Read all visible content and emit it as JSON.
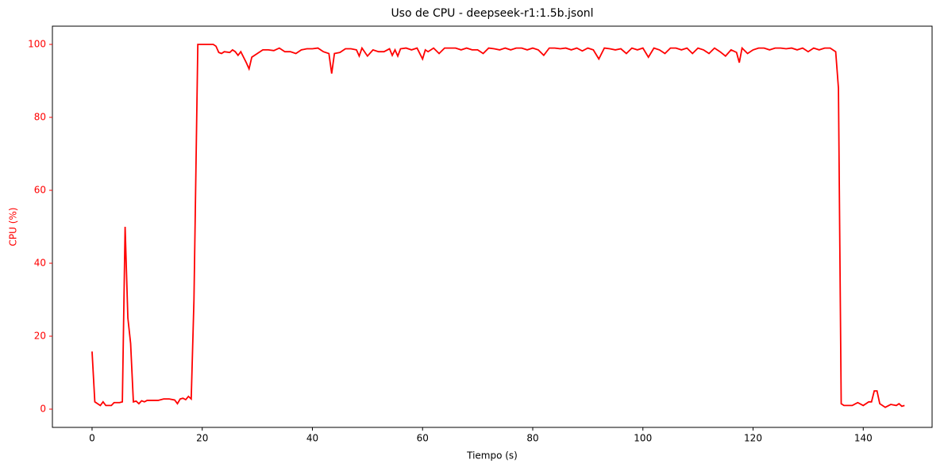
{
  "chart_data": {
    "type": "line",
    "title": "Uso de CPU - deepseek-r1:1.5b.jsonl",
    "x_label": "Tiempo (s)",
    "y_label": "CPU (%)",
    "series": [
      {
        "name": "CPU (%)",
        "color": "#ff0000",
        "x": [
          0,
          0.5,
          1.5,
          2,
          2.5,
          3.5,
          4,
          5,
          5.5,
          6,
          6.5,
          7,
          7.5,
          8,
          8.5,
          9,
          9.5,
          10,
          11,
          12,
          13,
          14,
          15,
          15.5,
          16,
          16.5,
          17,
          17.5,
          18,
          18.5,
          19.2,
          22,
          22.5,
          23,
          23.5,
          24,
          25,
          25.5,
          26,
          26.5,
          27,
          28,
          28.5,
          29,
          30,
          31,
          32,
          33,
          34,
          35,
          36,
          37,
          38,
          39,
          40,
          41,
          42,
          43,
          43.5,
          44,
          45,
          46,
          47,
          48,
          48.5,
          49,
          50,
          51,
          52,
          53,
          54,
          54.5,
          55,
          55.5,
          56,
          57,
          58,
          59,
          60,
          60.5,
          61,
          62,
          63,
          64,
          65,
          66,
          67,
          68,
          69,
          70,
          71,
          72,
          73,
          74,
          75,
          76,
          77,
          78,
          79,
          80,
          81,
          82,
          83,
          84,
          85,
          86,
          87,
          88,
          89,
          90,
          91,
          92,
          93,
          94,
          95,
          96,
          97,
          98,
          99,
          100,
          101,
          102,
          103,
          104,
          105,
          106,
          107,
          108,
          109,
          110,
          111,
          112,
          113,
          114,
          115,
          116,
          117,
          117.5,
          118,
          119,
          120,
          121,
          122,
          123,
          124,
          125,
          126,
          127,
          128,
          129,
          130,
          131,
          132,
          133,
          134,
          135,
          135.5,
          136,
          136.5,
          138,
          139,
          140,
          141,
          141.5,
          142,
          142.5,
          143,
          144,
          145,
          146,
          146.5,
          147,
          147.5
        ],
        "values": [
          15.8,
          2,
          1,
          2,
          1,
          1,
          1.8,
          1.8,
          2,
          50,
          25,
          18,
          2,
          2.2,
          1.5,
          2.3,
          2,
          2.4,
          2.4,
          2.4,
          2.8,
          2.8,
          2.5,
          1.5,
          2.8,
          3,
          2.6,
          3.5,
          2.8,
          30,
          100,
          100,
          99.5,
          97.8,
          97.5,
          98,
          97.8,
          98.5,
          98,
          97,
          98,
          95,
          93.3,
          96.5,
          97.5,
          98.5,
          98.5,
          98.3,
          99,
          98,
          98,
          97.5,
          98.5,
          98.8,
          98.8,
          99,
          98,
          97.5,
          92,
          97.5,
          97.8,
          98.8,
          98.8,
          98.5,
          96.8,
          99,
          96.8,
          98.5,
          98,
          98,
          98.8,
          97,
          98.5,
          96.8,
          98.8,
          99,
          98.5,
          99,
          96,
          98.5,
          98,
          99,
          97.5,
          99,
          99,
          99,
          98.5,
          99,
          98.5,
          98.5,
          97.5,
          99,
          98.8,
          98.5,
          99,
          98.5,
          99,
          99,
          98.5,
          99,
          98.5,
          97,
          99,
          99,
          98.8,
          99,
          98.5,
          99,
          98.2,
          99,
          98.5,
          96,
          99,
          98.8,
          98.5,
          98.8,
          97.5,
          99,
          98.5,
          99,
          96.5,
          99,
          98.5,
          97.5,
          99,
          99,
          98.5,
          99,
          97.5,
          99,
          98.5,
          97.5,
          99,
          98,
          96.8,
          98.5,
          97.8,
          95,
          99,
          97.5,
          98.5,
          99,
          99,
          98.5,
          99,
          99,
          98.8,
          99,
          98.5,
          99,
          98,
          99,
          98.5,
          99,
          99,
          98,
          88,
          1.5,
          1,
          1,
          1.8,
          1,
          2,
          2,
          5,
          5,
          1.5,
          0.5,
          1.3,
          1,
          1.5,
          0.8,
          1
        ]
      }
    ],
    "xlim": [
      -7.2,
      152.5
    ],
    "ylim": [
      -5,
      105
    ],
    "xticks": [
      0,
      20,
      40,
      60,
      80,
      100,
      120,
      140
    ],
    "yticks": [
      0,
      20,
      40,
      60,
      80,
      100
    ],
    "y_axis_color": "#ff0000",
    "grid": false
  }
}
